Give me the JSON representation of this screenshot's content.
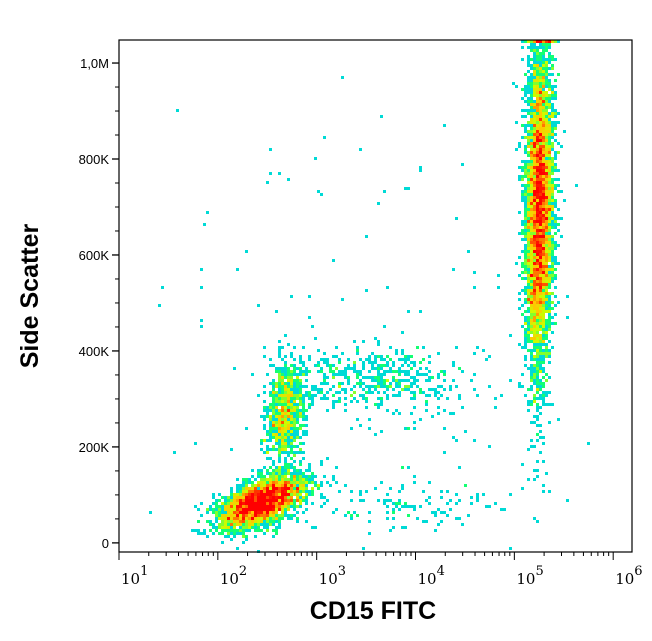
{
  "chart_data": {
    "type": "heatmap",
    "subtype": "flow-cytometry density dot plot",
    "xlabel": "CD15 FITC",
    "ylabel": "Side Scatter",
    "x_scale": "log",
    "xlim": [
      10,
      1550000
    ],
    "ylim": [
      -19000,
      1048000
    ],
    "x_ticks": [
      {
        "base": "10",
        "exp": "1",
        "value": 10
      },
      {
        "base": "10",
        "exp": "2",
        "value": 100
      },
      {
        "base": "10",
        "exp": "3",
        "value": 1000
      },
      {
        "base": "10",
        "exp": "4",
        "value": 10000
      },
      {
        "base": "10",
        "exp": "5",
        "value": 100000
      },
      {
        "base": "10",
        "exp": "6",
        "value": 1000000
      }
    ],
    "y_ticks": [
      {
        "label": "0",
        "value": 0
      },
      {
        "label": "200K",
        "value": 200000
      },
      {
        "label": "400K",
        "value": 400000
      },
      {
        "label": "600K",
        "value": 600000
      },
      {
        "label": "800K",
        "value": 800000
      },
      {
        "label": "1,0M",
        "value": 1000000
      }
    ],
    "grid": false,
    "colormap": [
      "#0000ff",
      "#00c8ff",
      "#00ff80",
      "#c8ff00",
      "#ffc800",
      "#ff0000"
    ],
    "populations": [
      {
        "x_center": 280,
        "x_log_sd": 0.22,
        "y_center": 85000,
        "y_sd": 28000,
        "count": 3200,
        "correlation": 0.55
      },
      {
        "x_center": 480,
        "x_log_sd": 0.1,
        "y_center": 270000,
        "y_sd": 50000,
        "count": 900,
        "correlation": 0.2
      },
      {
        "x_center": 4000,
        "x_log_sd": 0.45,
        "y_center": 340000,
        "y_sd": 35000,
        "count": 450,
        "correlation": 0.0
      },
      {
        "x_center": 180000,
        "x_log_sd": 0.07,
        "y_center": 700000,
        "y_sd": 170000,
        "count": 5200,
        "correlation": 0.1
      },
      {
        "x_center": 8000,
        "x_log_sd": 0.6,
        "y_center": 80000,
        "y_sd": 25000,
        "count": 120,
        "correlation": 0.0
      },
      {
        "x_center": 3000,
        "x_log_sd": 1.1,
        "y_center": 400000,
        "y_sd": 250000,
        "count": 140,
        "correlation": 0.0
      }
    ]
  }
}
